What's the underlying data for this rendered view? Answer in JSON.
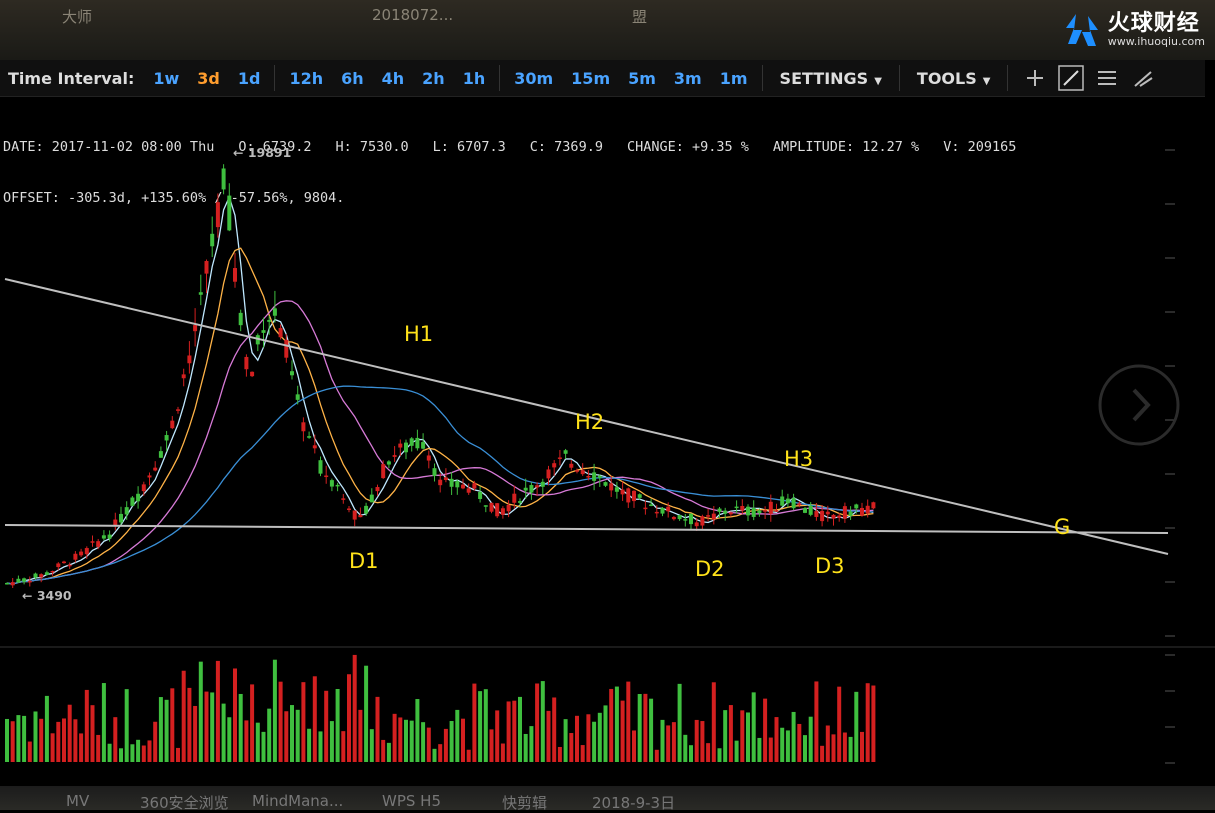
{
  "top_strip": {
    "items": [
      "大师",
      "2018072...",
      "盟"
    ]
  },
  "logo": {
    "name": "火球财经",
    "url": "www.ihuoqiu.com",
    "accent": "#1e8fff"
  },
  "toolbar": {
    "label": "Time Interval:",
    "intervals": [
      "1w",
      "3d",
      "1d",
      "12h",
      "6h",
      "4h",
      "2h",
      "1h",
      "30m",
      "15m",
      "5m",
      "3m",
      "1m"
    ],
    "active_interval": "3d",
    "settings_label": "SETTINGS",
    "tools_label": "TOOLS",
    "tool_icons": [
      "crosshair-icon",
      "line-tool-icon",
      "menu-lines-icon",
      "brush-icon"
    ]
  },
  "info": {
    "line1": [
      "DATE: 2017-11-02 08:00 Thu",
      "O: 6739.2",
      "H: 7530.0",
      "L: 6707.3",
      "C: 7369.9",
      "CHANGE: +9.35 %",
      "AMPLITUDE: 12.27 %",
      "V: 209165"
    ],
    "line2": "OFFSET: -305.3d, +135.60% / -57.56%, 9804."
  },
  "chart_data": {
    "type": "candlestick",
    "price_labels": {
      "high": "← 19891",
      "low": "← 3490"
    },
    "high_value": 19891,
    "low_value": 3490,
    "annotations": [
      "H1",
      "H2",
      "H3",
      "D1",
      "D2",
      "D3",
      "G"
    ],
    "annotation_color": "#ffe21a",
    "up_color": "#3fbf3f",
    "down_color": "#d42020",
    "ma_colors": [
      "#bfe8ff",
      "#ffb347",
      "#d77ad7",
      "#3a8fd6"
    ],
    "trendline_color": "#bfbfbf"
  },
  "taskbar": {
    "items": [
      "MV",
      "360安全浏览",
      "MindMana...",
      "WPS H5",
      "快剪辑",
      "2018-9-3日"
    ]
  }
}
